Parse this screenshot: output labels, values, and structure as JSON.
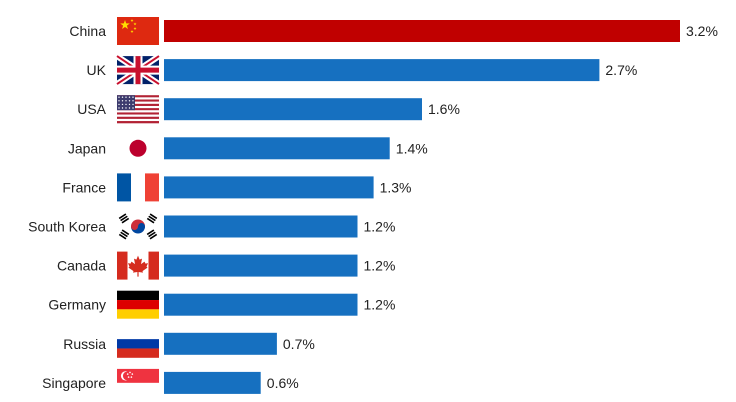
{
  "chart_data": {
    "type": "bar",
    "orientation": "horizontal",
    "categories": [
      "China",
      "UK",
      "USA",
      "Japan",
      "France",
      "South Korea",
      "Canada",
      "Germany",
      "Russia",
      "Singapore"
    ],
    "values": [
      3.2,
      2.7,
      1.6,
      1.4,
      1.3,
      1.2,
      1.2,
      1.2,
      0.7,
      0.6
    ],
    "value_labels": [
      "3.2%",
      "2.7%",
      "1.6%",
      "1.4%",
      "1.3%",
      "1.2%",
      "1.2%",
      "1.2%",
      "0.7%",
      "0.6%"
    ],
    "flag_icons": [
      "china-flag-icon",
      "uk-flag-icon",
      "usa-flag-icon",
      "japan-flag-icon",
      "france-flag-icon",
      "south-korea-flag-icon",
      "canada-flag-icon",
      "germany-flag-icon",
      "russia-flag-icon",
      "singapore-flag-icon"
    ],
    "highlight_index": 0,
    "colors": {
      "bar": "#1670c0",
      "highlight": "#c00000"
    },
    "title": "",
    "xlabel": "",
    "ylabel": "",
    "xlim": [
      0,
      3.2
    ],
    "grid": false,
    "legend": "none"
  }
}
